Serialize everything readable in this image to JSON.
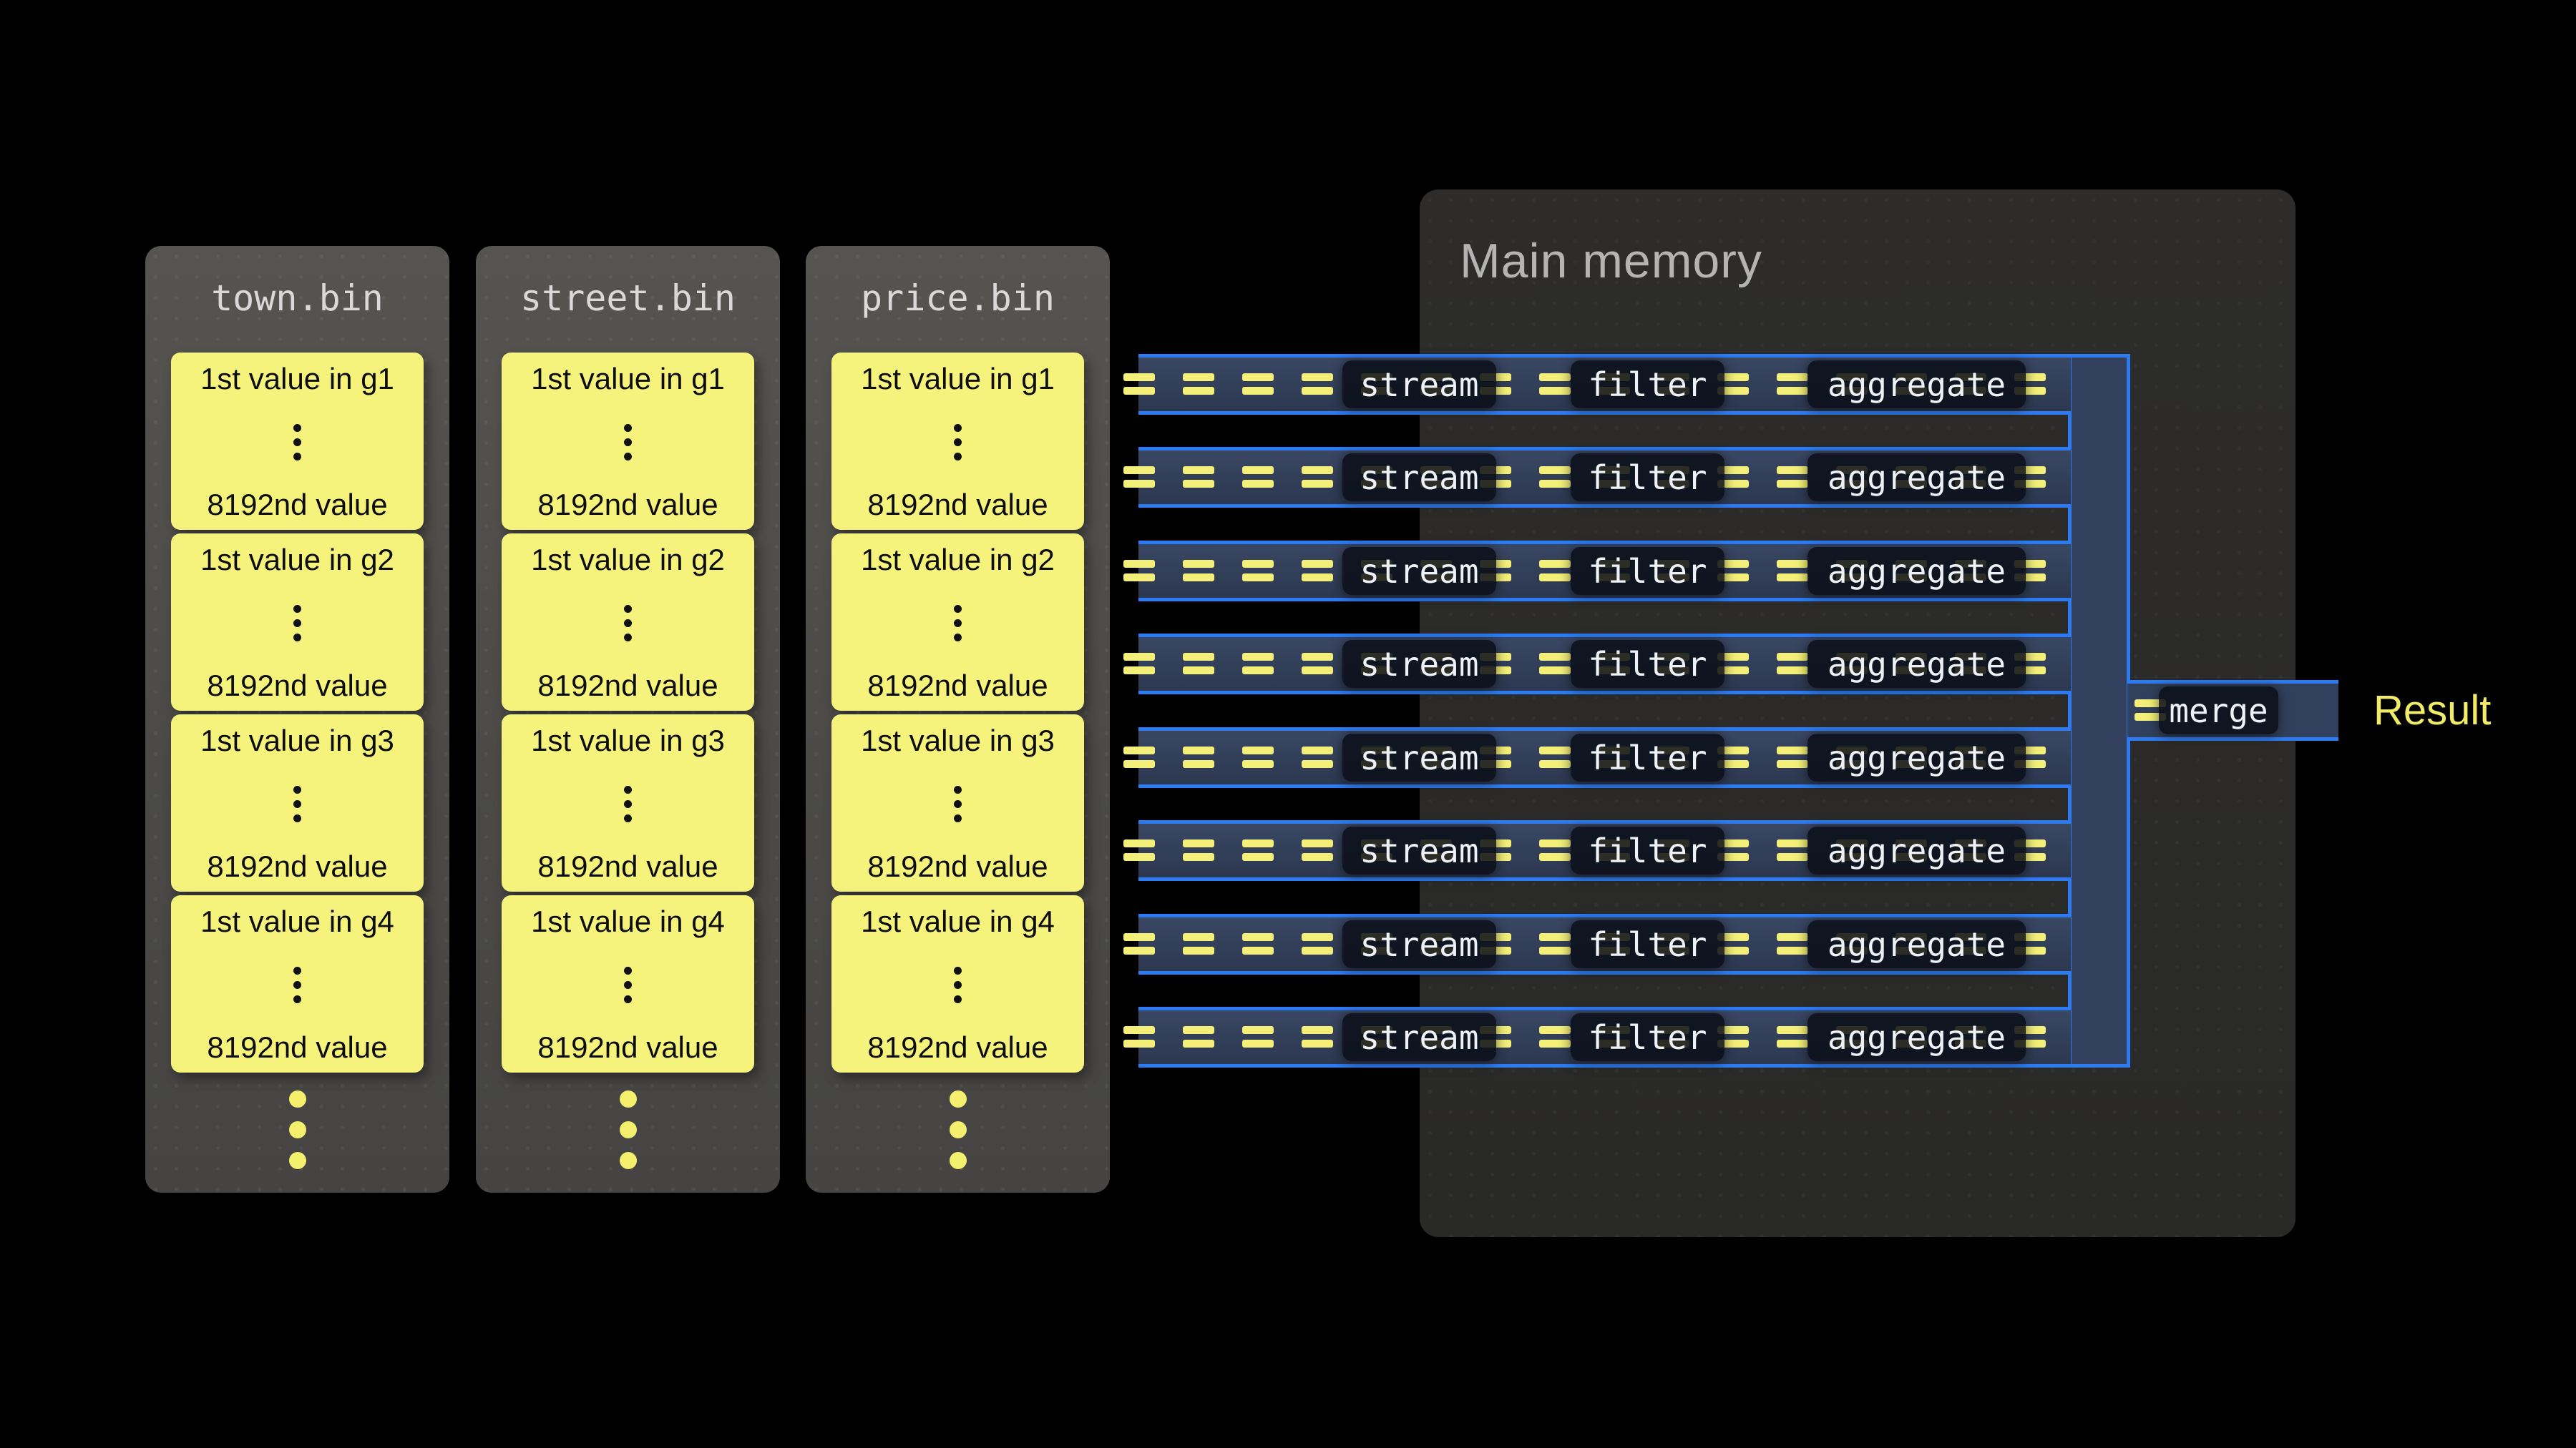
{
  "colors": {
    "background": "#000000",
    "accent_blue": "#2c7bf3",
    "accent_yellow": "#f3ef78",
    "block_yellow": "#f6f37c",
    "memory_panel_gray": "#2b2b29",
    "file_column_gray": "#4b4a47"
  },
  "files": [
    {
      "name": "town.bin",
      "blocks": [
        {
          "first": "1st value in g1",
          "last": "8192nd value"
        },
        {
          "first": "1st value in g2",
          "last": "8192nd value"
        },
        {
          "first": "1st value in g3",
          "last": "8192nd value"
        },
        {
          "first": "1st value in g4",
          "last": "8192nd value"
        }
      ]
    },
    {
      "name": "street.bin",
      "blocks": [
        {
          "first": "1st value in g1",
          "last": "8192nd value"
        },
        {
          "first": "1st value in g2",
          "last": "8192nd value"
        },
        {
          "first": "1st value in g3",
          "last": "8192nd value"
        },
        {
          "first": "1st value in g4",
          "last": "8192nd value"
        }
      ]
    },
    {
      "name": "price.bin",
      "blocks": [
        {
          "first": "1st value in g1",
          "last": "8192nd value"
        },
        {
          "first": "1st value in g2",
          "last": "8192nd value"
        },
        {
          "first": "1st value in g3",
          "last": "8192nd value"
        },
        {
          "first": "1st value in g4",
          "last": "8192nd value"
        }
      ]
    }
  ],
  "memory": {
    "title": "Main memory"
  },
  "pipeline": {
    "lane_count": 8,
    "stages": [
      "stream",
      "filter",
      "aggregate"
    ],
    "merge_label": "merge",
    "result_label": "Result"
  }
}
